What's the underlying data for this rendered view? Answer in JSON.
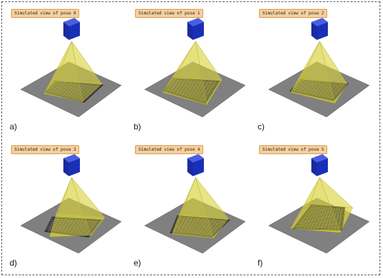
{
  "panels": [
    {
      "sublabel": "a)",
      "caption": "Simulated view of pose 0"
    },
    {
      "sublabel": "b)",
      "caption": "Simulated view of pose 1"
    },
    {
      "sublabel": "c)",
      "caption": "Simulated view of pose 2"
    },
    {
      "sublabel": "d)",
      "caption": "Simulated view of pose 3"
    },
    {
      "sublabel": "e)",
      "caption": "Simulated view of pose 4"
    },
    {
      "sublabel": "f)",
      "caption": "Simulated view of pose 5"
    }
  ],
  "colors": {
    "plane": "#808080",
    "frustum": "#d8d23a",
    "camera": "#1a2fb8",
    "caption_bg": "#f6cf9d",
    "checker": "#1a1a1a"
  },
  "icons": {
    "camera": "camera-cube-icon",
    "target": "calibration-board-icon"
  }
}
